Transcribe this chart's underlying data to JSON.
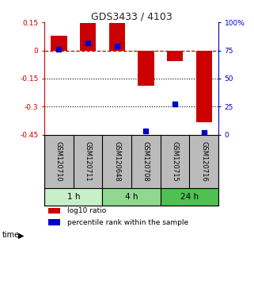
{
  "title": "GDS3433 / 4103",
  "samples": [
    "GSM120710",
    "GSM120711",
    "GSM120648",
    "GSM120708",
    "GSM120715",
    "GSM120716"
  ],
  "log10_ratio": [
    0.08,
    0.145,
    0.148,
    -0.19,
    -0.055,
    -0.385
  ],
  "percentile_rank": [
    76,
    82,
    79,
    3,
    27,
    2
  ],
  "time_groups": [
    {
      "label": "1 h",
      "color": "#c8f0c8",
      "cols": [
        0,
        1
      ]
    },
    {
      "label": "4 h",
      "color": "#90d890",
      "cols": [
        2,
        3
      ]
    },
    {
      "label": "24 h",
      "color": "#50c050",
      "cols": [
        4,
        5
      ]
    }
  ],
  "ylim_left": [
    -0.45,
    0.15
  ],
  "ylim_right": [
    0,
    100
  ],
  "yticks_left": [
    0.15,
    0,
    -0.15,
    -0.3,
    -0.45
  ],
  "yticks_right": [
    100,
    75,
    50,
    25,
    0
  ],
  "ytick_labels_left": [
    "0.15",
    "0",
    "-0.15",
    "-0.3",
    "-0.45"
  ],
  "ytick_labels_right": [
    "100%",
    "75",
    "50",
    "25",
    "0"
  ],
  "hline_zero_color": "#cc0000",
  "hline_zero_style": "--",
  "hline_dots": [
    -0.15,
    -0.3
  ],
  "bar_color": "#cc0000",
  "dot_color": "#0000cc",
  "bar_width": 0.55,
  "dot_size": 25,
  "title_color": "#222222",
  "left_axis_color": "#cc0000",
  "right_axis_color": "#0000cc",
  "legend_labels": [
    "log10 ratio",
    "percentile rank within the sample"
  ],
  "background_color": "#ffffff",
  "sample_label_color": "#bbbbbb"
}
